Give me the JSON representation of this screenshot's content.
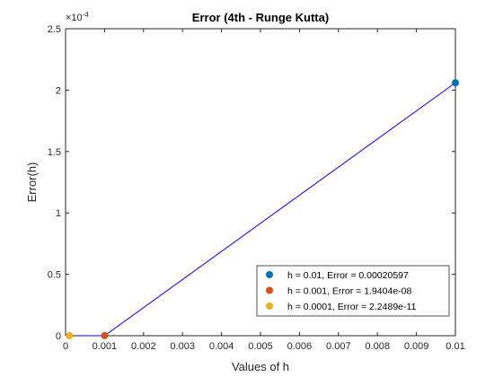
{
  "chart_data": {
    "type": "scatter",
    "title": "Error (4th - Runge Kutta)",
    "xlabel": "Values of h",
    "ylabel": "Error(h)",
    "xlim": [
      0,
      0.01
    ],
    "ylim": [
      0,
      0.00025
    ],
    "y_exponent_label": "×10",
    "y_exponent_power": "-4",
    "x_tick_labels": [
      "0",
      "0.001",
      "0.002",
      "0.003",
      "0.004",
      "0.005",
      "0.006",
      "0.007",
      "0.008",
      "0.009",
      "0.01"
    ],
    "x_tick_values": [
      0,
      0.001,
      0.002,
      0.003,
      0.004,
      0.005,
      0.006,
      0.007,
      0.008,
      0.009,
      0.01
    ],
    "y_tick_labels": [
      "0",
      "0.5",
      "1",
      "1.5",
      "2",
      "2.5"
    ],
    "y_tick_values": [
      0,
      5e-05,
      0.0001,
      0.00015,
      0.0002,
      0.00025
    ],
    "line": {
      "color": "#0000ff",
      "x": [
        0.0001,
        0.001,
        0.01
      ],
      "y": [
        2.2489e-11,
        1.9404e-08,
        0.00020597
      ]
    },
    "series": [
      {
        "name": "h = 0.01, Error = 0.00020597",
        "x": 0.01,
        "y": 0.00020597,
        "color": "#0072bd"
      },
      {
        "name": "h = 0.001, Error = 1.9404e-08",
        "x": 0.001,
        "y": 1.9404e-08,
        "color": "#d95319"
      },
      {
        "name": "h = 0.0001, Error = 2.2489e-11",
        "x": 0.0001,
        "y": 2.2489e-11,
        "color": "#edb120"
      }
    ],
    "grid": false,
    "legend_position": "bottom-right"
  }
}
